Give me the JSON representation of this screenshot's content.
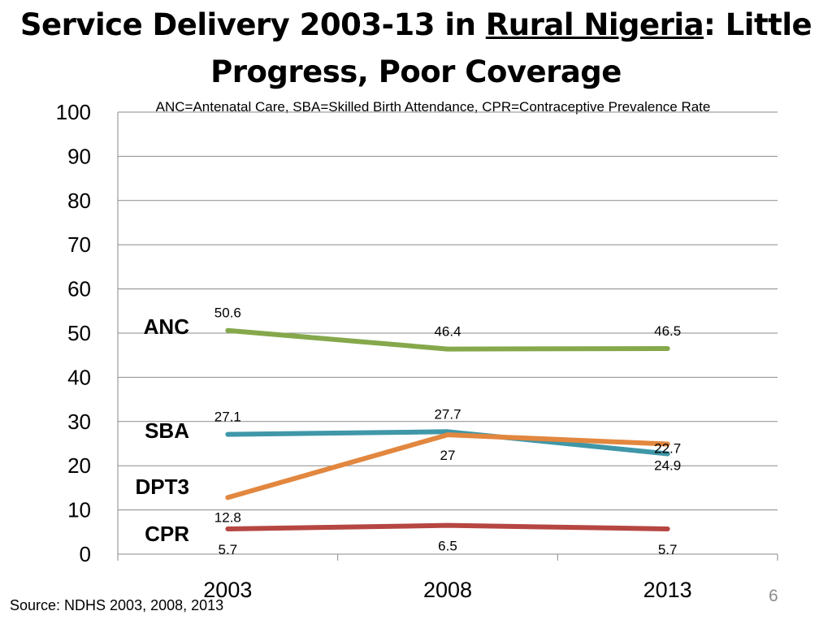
{
  "slide": {
    "title_part1": "Service Delivery 2003-13 in ",
    "title_underlined": "Rural Nigeria",
    "title_part2": ": Little",
    "title_line2": "Progress, Poor Coverage",
    "source": "Source: NDHS 2003, 2008, 2013",
    "page_number": "6"
  },
  "chart_data": {
    "type": "line",
    "subtitle": "ANC=Antenatal Care, SBA=Skilled Birth Attendance, CPR=Contraceptive Prevalence Rate",
    "x": [
      "2003",
      "2008",
      "2013"
    ],
    "ylim": [
      0,
      100
    ],
    "yticks": [
      0,
      10,
      20,
      30,
      40,
      50,
      60,
      70,
      80,
      90,
      100
    ],
    "grid": true,
    "series": [
      {
        "name": "ANC",
        "color": "#84a84b",
        "values": [
          50.6,
          46.4,
          46.5
        ],
        "value_labels": [
          "50.6",
          "46.4",
          "46.5"
        ]
      },
      {
        "name": "SBA",
        "color": "#3f97a8",
        "values": [
          27.1,
          27.7,
          22.7
        ],
        "value_labels": [
          "27.1",
          "27.7",
          "22.7"
        ]
      },
      {
        "name": "DPT3",
        "color": "#e2873f",
        "values": [
          12.8,
          27,
          24.9
        ],
        "value_labels": [
          "12.8",
          "27",
          "24.9"
        ]
      },
      {
        "name": "CPR",
        "color": "#b64642",
        "values": [
          5.7,
          6.5,
          5.7
        ],
        "value_labels": [
          "5.7",
          "6.5",
          "5.7"
        ]
      }
    ]
  }
}
